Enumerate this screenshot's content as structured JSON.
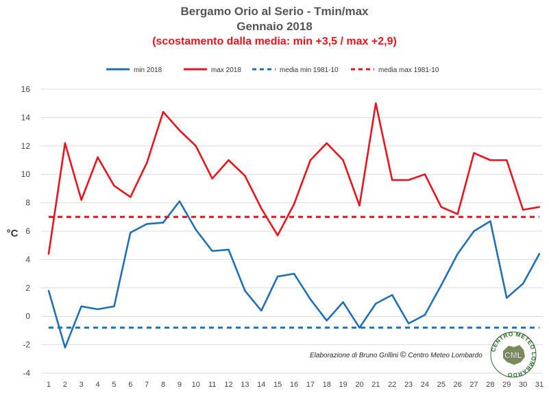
{
  "header": {
    "title": "Bergamo Orio al Serio - Tmin/max",
    "subtitle": "Gennaio 2018",
    "note": "(scostamento dalla media: min +3,5 / max +2,9)"
  },
  "credit": {
    "text": "Elaborazione di Bruno Grillini",
    "copyright": "©",
    "org": "Centro Meteo Lombardo"
  },
  "logo": {
    "ring_text": "CENTRO METEO LOMBARDO",
    "center": "CML"
  },
  "colors": {
    "min": "#1f6fb5",
    "max": "#e8141c",
    "grid": "#d9d9d9",
    "axis_text": "#444444"
  },
  "chart_data": {
    "type": "line",
    "x": [
      1,
      2,
      3,
      4,
      5,
      6,
      7,
      8,
      9,
      10,
      11,
      12,
      13,
      14,
      15,
      16,
      17,
      18,
      19,
      20,
      21,
      22,
      23,
      24,
      25,
      26,
      27,
      28,
      29,
      30,
      31
    ],
    "ylabel": "°C",
    "ylim": [
      -4,
      16
    ],
    "yticks": [
      -4,
      -2,
      0,
      2,
      4,
      6,
      8,
      10,
      12,
      14,
      16
    ],
    "grid": true,
    "legend_position": "top",
    "series": [
      {
        "name": "min 2018",
        "style": "solid",
        "color": "#1f6fb5",
        "values": [
          1.8,
          -2.2,
          0.7,
          0.5,
          0.7,
          5.9,
          6.5,
          6.6,
          8.1,
          6.1,
          4.6,
          4.7,
          1.8,
          0.4,
          2.8,
          3.0,
          1.2,
          -0.3,
          1.0,
          -0.8,
          0.9,
          1.5,
          -0.5,
          0.1,
          2.2,
          4.4,
          6.0,
          6.7,
          1.3,
          2.3,
          4.4
        ]
      },
      {
        "name": "max 2018",
        "style": "solid",
        "color": "#e8141c",
        "values": [
          4.4,
          12.2,
          8.2,
          11.2,
          9.2,
          8.4,
          10.8,
          14.4,
          13.1,
          12.0,
          9.7,
          11.0,
          9.9,
          7.6,
          5.7,
          7.9,
          11.0,
          12.2,
          11.0,
          7.8,
          15.0,
          9.6,
          9.6,
          10.0,
          7.7,
          7.2,
          11.5,
          11.0,
          11.0,
          7.5,
          7.7
        ]
      },
      {
        "name": "media min 1981-10",
        "style": "dashed",
        "color": "#1f6fb5",
        "constant": -0.8
      },
      {
        "name": "media max 1981-10",
        "style": "dashed",
        "color": "#e8141c",
        "constant": 7.0
      }
    ]
  }
}
